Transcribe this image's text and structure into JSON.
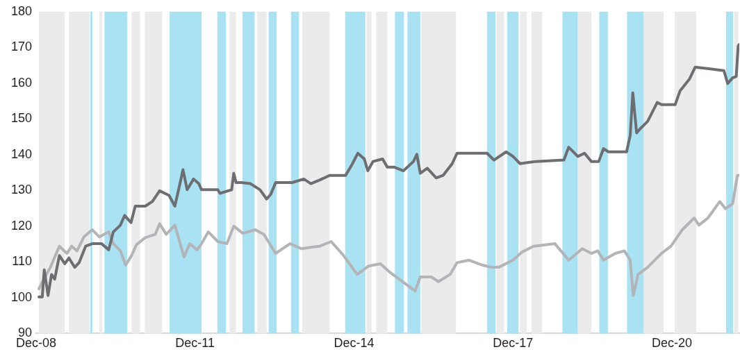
{
  "chart_data": {
    "type": "line",
    "marker": "none",
    "xlim": [
      "2008-12-01",
      "2022-03-10"
    ],
    "ylim": [
      90,
      180
    ],
    "xticks": [
      {
        "value": "2008-12-01",
        "label": "Dec-08"
      },
      {
        "value": "2011-12-01",
        "label": "Dec-11"
      },
      {
        "value": "2014-12-01",
        "label": "Dec-14"
      },
      {
        "value": "2017-12-01",
        "label": "Dec-17"
      },
      {
        "value": "2020-12-01",
        "label": "Dec-20"
      }
    ],
    "yticks": [
      90,
      100,
      110,
      120,
      130,
      140,
      150,
      160,
      170,
      180
    ],
    "bands": [
      {
        "axis": "x",
        "from": "2008-12-20",
        "to": "2009-06-16",
        "color": "#ebebec"
      },
      {
        "axis": "x",
        "from": "2009-07-15",
        "to": "2009-12-05",
        "color": "#ebebec"
      },
      {
        "axis": "x",
        "from": "2009-12-09",
        "to": "2009-12-23",
        "color": "#a8e2f3"
      },
      {
        "axis": "x",
        "from": "2010-02-10",
        "to": "2010-03-02",
        "color": "#ebebec"
      },
      {
        "axis": "x",
        "from": "2010-03-17",
        "to": "2010-08-21",
        "color": "#a8e2f3"
      },
      {
        "axis": "x",
        "from": "2010-09-20",
        "to": "2010-11-17",
        "color": "#ebebec"
      },
      {
        "axis": "x",
        "from": "2010-12-20",
        "to": "2011-04-19",
        "color": "#ebebec"
      },
      {
        "axis": "x",
        "from": "2011-06-09",
        "to": "2012-01-15",
        "color": "#a8e2f3"
      },
      {
        "axis": "x",
        "from": "2012-05-03",
        "to": "2012-07-01",
        "color": "#a8e2f3"
      },
      {
        "axis": "x",
        "from": "2012-07-26",
        "to": "2012-09-09",
        "color": "#ebebec"
      },
      {
        "axis": "x",
        "from": "2012-10-23",
        "to": "2013-01-15",
        "color": "#a8e2f3"
      },
      {
        "axis": "x",
        "from": "2013-02-02",
        "to": "2013-04-08",
        "color": "#ebebec"
      },
      {
        "axis": "x",
        "from": "2013-04-22",
        "to": "2013-06-16",
        "color": "#a8e2f3"
      },
      {
        "axis": "x",
        "from": "2013-09-23",
        "to": "2013-11-17",
        "color": "#a8e2f3"
      },
      {
        "axis": "x",
        "from": "2013-12-09",
        "to": "2014-06-16",
        "color": "#ebebec"
      },
      {
        "axis": "x",
        "from": "2014-10-01",
        "to": "2015-02-17",
        "color": "#a8e2f3"
      },
      {
        "axis": "x",
        "from": "2015-02-25",
        "to": "2015-04-01",
        "color": "#ebebec"
      },
      {
        "axis": "x",
        "from": "2015-05-03",
        "to": "2015-07-19",
        "color": "#ebebec"
      },
      {
        "axis": "x",
        "from": "2015-09-09",
        "to": "2015-11-10",
        "color": "#a8e2f3"
      },
      {
        "axis": "x",
        "from": "2015-12-05",
        "to": "2016-03-02",
        "color": "#a8e2f3"
      },
      {
        "axis": "x",
        "from": "2016-03-09",
        "to": "2016-11-03",
        "color": "#ebebec"
      },
      {
        "axis": "x",
        "from": "2017-06-05",
        "to": "2017-08-03",
        "color": "#a8e2f3"
      },
      {
        "axis": "x",
        "from": "2017-08-10",
        "to": "2017-10-01",
        "color": "#ebebec"
      },
      {
        "axis": "x",
        "from": "2017-10-23",
        "to": "2018-01-08",
        "color": "#a8e2f3"
      },
      {
        "axis": "x",
        "from": "2018-01-19",
        "to": "2018-03-06",
        "color": "#ebebec"
      },
      {
        "axis": "x",
        "from": "2018-04-08",
        "to": "2018-06-20",
        "color": "#ebebec"
      },
      {
        "axis": "x",
        "from": "2018-11-07",
        "to": "2019-02-21",
        "color": "#a8e2f3"
      },
      {
        "axis": "x",
        "from": "2019-02-21",
        "to": "2019-05-25",
        "color": "#ebebec"
      },
      {
        "axis": "x",
        "from": "2019-07-19",
        "to": "2019-09-16",
        "color": "#a8e2f3"
      },
      {
        "axis": "x",
        "from": "2020-01-26",
        "to": "2020-05-21",
        "color": "#a8e2f3"
      },
      {
        "axis": "x",
        "from": "2020-05-21",
        "to": "2020-10-04",
        "color": "#ebebec"
      },
      {
        "axis": "x",
        "from": "2020-12-20",
        "to": "2021-05-17",
        "color": "#ebebec"
      },
      {
        "axis": "x",
        "from": "2021-12-09",
        "to": "2022-01-26",
        "color": "#a8e2f3"
      },
      {
        "axis": "x",
        "from": "2022-02-02",
        "to": "2022-03-02",
        "color": "#ebebec"
      }
    ],
    "series": [
      {
        "color": "#6d6e71",
        "x": [
          "2008-12-20",
          "2009-01-12",
          "2009-01-26",
          "2009-02-21",
          "2009-03-17",
          "2009-04-08",
          "2009-05-10",
          "2009-06-16",
          "2009-07-15",
          "2009-08-24",
          "2009-09-23",
          "2009-11-07",
          "2009-12-23",
          "2010-02-25",
          "2010-04-15",
          "2010-05-17",
          "2010-07-05",
          "2010-08-03",
          "2010-09-16",
          "2010-10-15",
          "2010-12-23",
          "2011-02-10",
          "2011-04-01",
          "2011-06-05",
          "2011-07-15",
          "2011-08-21",
          "2011-09-09",
          "2011-10-08",
          "2011-11-21",
          "2011-12-27",
          "2012-01-15",
          "2012-05-06",
          "2012-05-21",
          "2012-08-10",
          "2012-08-24",
          "2012-09-09",
          "2012-10-15",
          "2012-12-16",
          "2013-02-21",
          "2013-04-08",
          "2013-05-06",
          "2013-06-09",
          "2013-10-01",
          "2013-12-20",
          "2014-02-07",
          "2014-04-08",
          "2014-06-16",
          "2014-10-04",
          "2014-11-21",
          "2014-12-27",
          "2015-02-10",
          "2015-03-06",
          "2015-04-11",
          "2015-06-16",
          "2015-07-19",
          "2015-09-05",
          "2015-11-07",
          "2016-01-15",
          "2016-02-07",
          "2016-03-02",
          "2016-04-19",
          "2016-06-20",
          "2016-08-06",
          "2016-10-08",
          "2016-11-10",
          "2017-06-05",
          "2017-07-23",
          "2017-10-15",
          "2017-12-01",
          "2018-01-19",
          "2018-05-06",
          "2018-11-17",
          "2018-12-20",
          "2019-02-21",
          "2019-04-08",
          "2019-05-25",
          "2019-07-15",
          "2019-08-17",
          "2019-09-20",
          "2020-01-23",
          "2020-02-17",
          "2020-03-06",
          "2020-04-01",
          "2020-04-29",
          "2020-06-16",
          "2020-08-21",
          "2020-09-20",
          "2020-12-23",
          "2021-01-26",
          "2021-04-01",
          "2021-05-10",
          "2021-11-24",
          "2021-12-20",
          "2022-01-23",
          "2022-02-17",
          "2022-03-02",
          "2022-03-09"
        ],
        "values": [
          100.2,
          100.2,
          107.8,
          100.6,
          106.5,
          105.2,
          111.8,
          109.5,
          111.1,
          108.5,
          109.8,
          114.4,
          115.1,
          115.1,
          113.4,
          118.4,
          120.3,
          123.0,
          121.0,
          125.6,
          125.6,
          126.9,
          129.9,
          128.6,
          125.6,
          132.2,
          135.8,
          130.2,
          133.2,
          131.9,
          130.2,
          130.2,
          129.2,
          130.2,
          134.8,
          132.2,
          132.2,
          131.9,
          130.2,
          127.6,
          128.9,
          132.2,
          132.2,
          133.2,
          131.9,
          132.9,
          134.2,
          134.2,
          137.5,
          140.4,
          138.8,
          135.5,
          138.1,
          138.8,
          136.5,
          136.5,
          135.5,
          138.1,
          140.1,
          134.8,
          136.2,
          133.5,
          134.2,
          137.5,
          140.4,
          140.4,
          138.5,
          140.8,
          139.5,
          137.5,
          138.1,
          138.5,
          142.1,
          139.5,
          140.4,
          138.1,
          138.1,
          141.7,
          140.8,
          140.8,
          145.4,
          157.3,
          146.1,
          147.4,
          149.3,
          154.6,
          154.0,
          154.0,
          157.9,
          161.2,
          164.5,
          163.5,
          159.9,
          161.5,
          161.9,
          170.4,
          170.8
        ]
      },
      {
        "color": "#b3b4b7",
        "x": [
          "2008-12-20",
          "2009-01-23",
          "2009-03-09",
          "2009-05-10",
          "2009-07-01",
          "2009-08-03",
          "2009-09-09",
          "2009-10-26",
          "2009-12-23",
          "2010-02-10",
          "2010-04-15",
          "2010-05-17",
          "2010-07-05",
          "2010-08-10",
          "2010-09-20",
          "2010-10-23",
          "2010-12-23",
          "2011-03-02",
          "2011-04-01",
          "2011-05-17",
          "2011-07-15",
          "2011-08-21",
          "2011-09-16",
          "2011-10-26",
          "2011-12-16",
          "2012-01-15",
          "2012-03-02",
          "2012-05-06",
          "2012-07-08",
          "2012-08-24",
          "2012-10-26",
          "2013-01-19",
          "2013-03-20",
          "2013-06-09",
          "2013-09-16",
          "2013-12-05",
          "2014-02-07",
          "2014-04-08",
          "2014-06-27",
          "2014-09-20",
          "2014-12-23",
          "2015-03-09",
          "2015-06-01",
          "2015-08-03",
          "2015-10-08",
          "2016-01-26",
          "2016-03-02",
          "2016-05-17",
          "2016-07-05",
          "2016-09-23",
          "2016-11-10",
          "2017-02-02",
          "2017-05-06",
          "2017-07-08",
          "2017-08-24",
          "2017-12-01",
          "2018-02-02",
          "2018-04-22",
          "2018-09-16",
          "2018-12-20",
          "2019-03-24",
          "2019-05-25",
          "2019-07-08",
          "2019-08-17",
          "2019-11-07",
          "2020-01-08",
          "2020-02-17",
          "2020-03-09",
          "2020-04-11",
          "2020-06-16",
          "2020-09-20",
          "2020-11-24",
          "2021-02-10",
          "2021-05-03",
          "2021-06-05",
          "2021-08-06",
          "2021-10-26",
          "2021-12-05",
          "2022-01-23",
          "2022-02-25",
          "2022-03-09"
        ],
        "values": [
          102.5,
          105.2,
          108.5,
          114.4,
          112.4,
          114.4,
          113.1,
          117.0,
          119.0,
          117.0,
          118.4,
          115.1,
          113.1,
          109.1,
          111.8,
          114.8,
          116.8,
          117.7,
          120.7,
          117.7,
          120.3,
          115.1,
          111.4,
          115.1,
          113.4,
          115.1,
          118.4,
          115.7,
          115.1,
          120.0,
          118.0,
          119.0,
          117.7,
          112.4,
          115.1,
          113.7,
          114.1,
          114.4,
          115.7,
          111.8,
          106.5,
          108.8,
          109.5,
          107.2,
          105.2,
          101.9,
          105.8,
          105.8,
          104.5,
          106.5,
          109.8,
          110.5,
          109.1,
          108.5,
          108.5,
          110.5,
          112.8,
          114.4,
          115.1,
          110.5,
          113.7,
          112.4,
          113.1,
          110.5,
          112.4,
          113.1,
          110.5,
          100.6,
          106.5,
          108.5,
          112.4,
          114.4,
          119.0,
          122.3,
          120.3,
          122.3,
          126.9,
          124.9,
          126.3,
          134.2,
          134.2
        ]
      }
    ]
  }
}
